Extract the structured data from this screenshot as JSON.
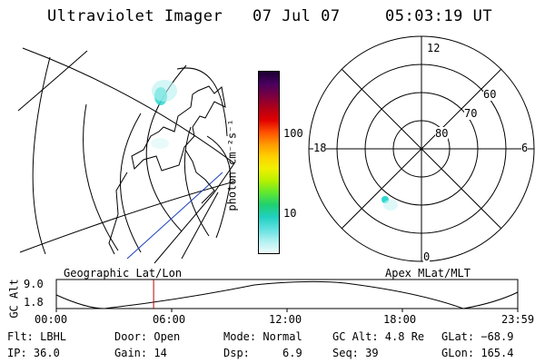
{
  "header": {
    "title": "Ultraviolet Imager",
    "date": "07 Jul 07",
    "time": "05:03:19 UT"
  },
  "geo_panel": {
    "label": "Geographic Lat/Lon"
  },
  "polar_panel": {
    "label": "Apex MLat/MLT",
    "mlt_labels": [
      "12",
      "18",
      "6",
      "0"
    ],
    "lat_labels": [
      "60",
      "70",
      "80"
    ]
  },
  "colorbar": {
    "unit_label": "photon cm⁻²s⁻¹",
    "tick_labels": [
      "100",
      "10"
    ],
    "colors": [
      "#1a0030",
      "#4a0060",
      "#7a0040",
      "#b00018",
      "#e00000",
      "#ff5000",
      "#ff9a00",
      "#ffd000",
      "#f0f000",
      "#b8f000",
      "#60e830",
      "#20d070",
      "#20d0c0",
      "#60e0e0",
      "#b0f0f0",
      "#f0fcfc"
    ]
  },
  "altitude_plot": {
    "ylabel": "GC Alt",
    "yticks": [
      "9.0",
      "1.8"
    ],
    "xticks": [
      "00:00",
      "06:00",
      "12:00",
      "18:00",
      "23:59"
    ],
    "current_marker_hour": 5.06
  },
  "info": {
    "flt": "Flt: LBHL",
    "door": "Door: Open",
    "mode": "Mode: Normal",
    "gc_alt": "GC Alt: 4.8 Re",
    "glat": "GLat: −68.9",
    "ip": "IP: 36.0",
    "gain": "Gain: 14",
    "dsp": "Dsp:     6.9",
    "seq": "Seq: 39",
    "glon": "GLon: 165.4"
  }
}
